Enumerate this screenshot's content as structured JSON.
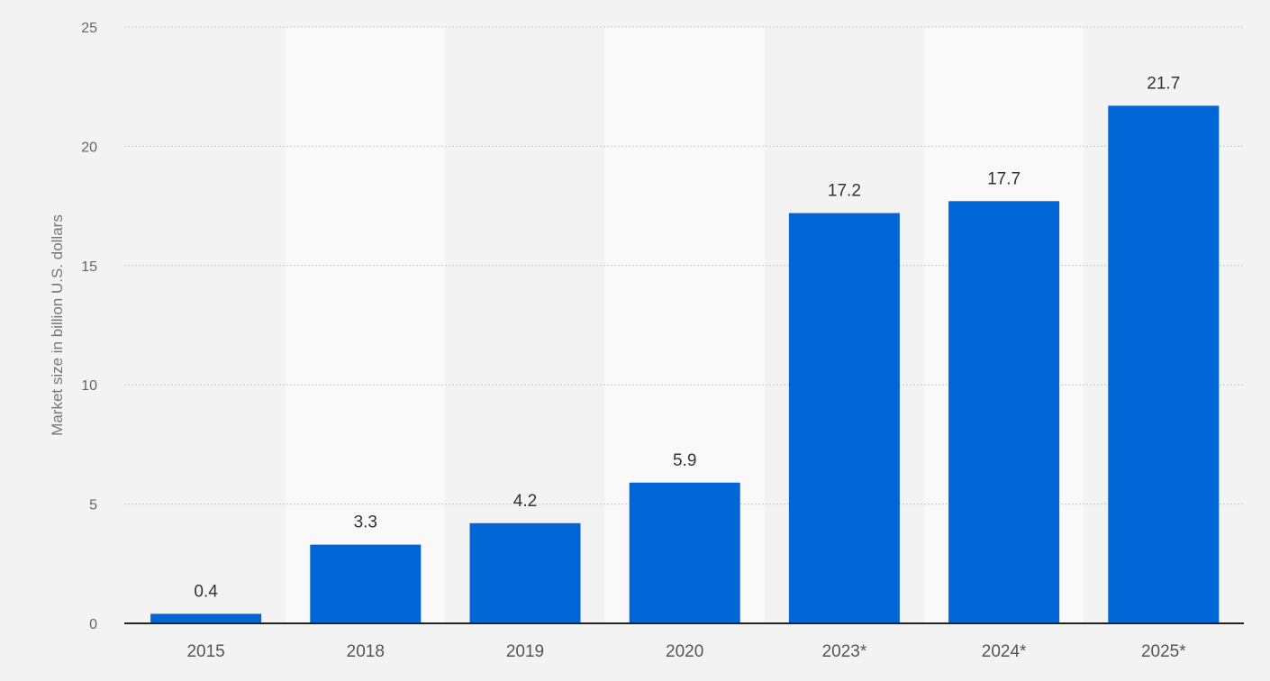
{
  "chart_data": {
    "type": "bar",
    "categories": [
      "2015",
      "2018",
      "2019",
      "2020",
      "2023*",
      "2024*",
      "2025*"
    ],
    "values": [
      0.4,
      3.3,
      4.2,
      5.9,
      17.2,
      17.7,
      21.7
    ],
    "data_labels": [
      "0.4",
      "3.3",
      "4.2",
      "5.9",
      "17.2",
      "17.7",
      "21.7"
    ],
    "title": "",
    "xlabel": "",
    "ylabel": "Market size in billion U.S. dollars",
    "ylim": [
      0,
      25
    ],
    "yticks": [
      "0",
      "5",
      "10",
      "15",
      "20",
      "25"
    ],
    "grid": true,
    "legend": "none",
    "colors": {
      "bar": "#0066d6",
      "band_light": "#f9f9f9",
      "band_dark": "#f3f3f3",
      "grid": "#c8c8c8",
      "axis": "#222222"
    }
  }
}
